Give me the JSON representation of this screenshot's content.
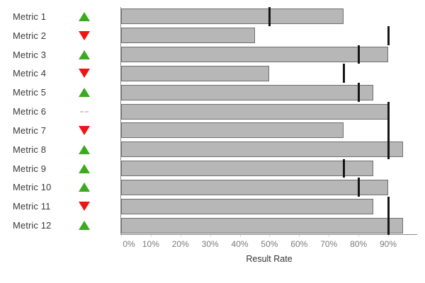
{
  "chart_data": {
    "type": "bar",
    "variant": "bullet",
    "orientation": "horizontal",
    "title": "",
    "xlabel": "Result Rate",
    "x_tick_labels": [
      "0%",
      "10%",
      "20%",
      "30%",
      "40%",
      "50%",
      "60%",
      "70%",
      "80%",
      "90%"
    ],
    "xlim": [
      0,
      100
    ],
    "grid": false,
    "legend": false,
    "categories": [
      "Metric 1",
      "Metric 2",
      "Metric 3",
      "Metric 4",
      "Metric 5",
      "Metric 6",
      "Metric 7",
      "Metric 8",
      "Metric 9",
      "Metric 10",
      "Metric 11",
      "Metric 12"
    ],
    "indicators": [
      "up",
      "down",
      "up",
      "down",
      "up",
      "dash",
      "down",
      "up",
      "up",
      "up",
      "down",
      "up"
    ],
    "series": [
      {
        "name": "Result Rate",
        "values": [
          75,
          45,
          90,
          50,
          85,
          90,
          75,
          95,
          85,
          90,
          85,
          95
        ]
      },
      {
        "name": "Target",
        "values": [
          50,
          90,
          80,
          75,
          80,
          90,
          90,
          90,
          75,
          80,
          90,
          90
        ]
      }
    ],
    "colors": {
      "up": "#3caa1e",
      "down": "#f01414",
      "dash": "#cfcfcf",
      "bar_fill": "#b7b7b7",
      "bar_border": "#6f6f6f",
      "target": "#161616",
      "axis_line": "#8b8b8b",
      "tick": "#d8d8d8",
      "axis_text": "#7b7b7b",
      "label_text": "#3a3a3a"
    }
  }
}
